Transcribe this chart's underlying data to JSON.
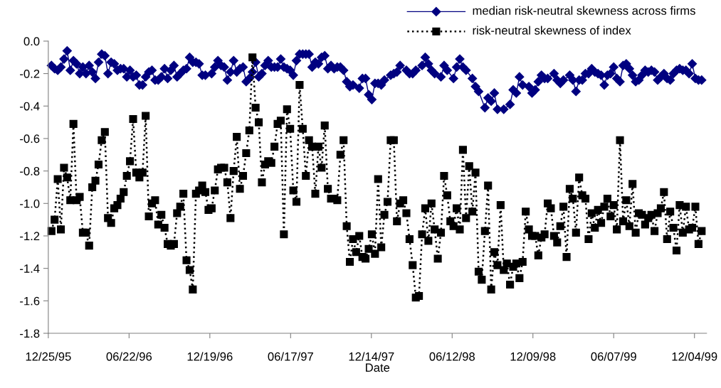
{
  "chart_data": {
    "type": "line",
    "xlabel": "Date",
    "x": [
      "1996-01-01",
      "1996-01-08",
      "1996-01-15",
      "1996-01-22",
      "1996-01-29",
      "1996-02-05",
      "1996-02-12",
      "1996-02-19",
      "1996-02-26",
      "1996-03-04",
      "1996-03-11",
      "1996-03-18",
      "1996-03-25",
      "1996-04-01",
      "1996-04-08",
      "1996-04-15",
      "1996-04-22",
      "1996-04-29",
      "1996-05-06",
      "1996-05-13",
      "1996-05-20",
      "1996-05-27",
      "1996-06-03",
      "1996-06-10",
      "1996-06-17",
      "1996-06-24",
      "1996-07-01",
      "1996-07-08",
      "1996-07-15",
      "1996-07-22",
      "1996-07-29",
      "1996-08-05",
      "1996-08-12",
      "1996-08-19",
      "1996-08-26",
      "1996-09-02",
      "1996-09-09",
      "1996-09-16",
      "1996-09-23",
      "1996-09-30",
      "1996-10-07",
      "1996-10-14",
      "1996-10-21",
      "1996-10-28",
      "1996-11-04",
      "1996-11-11",
      "1996-11-18",
      "1996-11-25",
      "1996-12-02",
      "1996-12-09",
      "1996-12-16",
      "1996-12-23",
      "1996-12-30",
      "1997-01-06",
      "1997-01-13",
      "1997-01-20",
      "1997-01-27",
      "1997-02-03",
      "1997-02-10",
      "1997-02-17",
      "1997-02-24",
      "1997-03-03",
      "1997-03-10",
      "1997-03-17",
      "1997-03-24",
      "1997-03-31",
      "1997-04-07",
      "1997-04-14",
      "1997-04-21",
      "1997-04-28",
      "1997-05-05",
      "1997-05-12",
      "1997-05-19",
      "1997-05-26",
      "1997-06-02",
      "1997-06-09",
      "1997-06-16",
      "1997-06-23",
      "1997-06-30",
      "1997-07-07",
      "1997-07-14",
      "1997-07-21",
      "1997-07-28",
      "1997-08-04",
      "1997-08-11",
      "1997-08-18",
      "1997-08-25",
      "1997-09-01",
      "1997-09-08",
      "1997-09-15",
      "1997-09-22",
      "1997-09-29",
      "1997-10-06",
      "1997-10-13",
      "1997-10-20",
      "1997-10-27",
      "1997-11-03",
      "1997-11-10",
      "1997-11-17",
      "1997-11-24",
      "1997-12-01",
      "1997-12-08",
      "1997-12-15",
      "1997-12-22",
      "1997-12-29",
      "1998-01-05",
      "1998-01-12",
      "1998-01-19",
      "1998-01-26",
      "1998-02-02",
      "1998-02-09",
      "1998-02-16",
      "1998-02-23",
      "1998-03-02",
      "1998-03-09",
      "1998-03-16",
      "1998-03-23",
      "1998-03-30",
      "1998-04-06",
      "1998-04-13",
      "1998-04-20",
      "1998-04-27",
      "1998-05-04",
      "1998-05-11",
      "1998-05-18",
      "1998-05-25",
      "1998-06-01",
      "1998-06-08",
      "1998-06-15",
      "1998-06-22",
      "1998-06-29",
      "1998-07-06",
      "1998-07-13",
      "1998-07-20",
      "1998-07-27",
      "1998-08-03",
      "1998-08-10",
      "1998-08-17",
      "1998-08-24",
      "1998-08-31",
      "1998-09-07",
      "1998-09-14",
      "1998-09-21",
      "1998-09-28",
      "1998-10-05",
      "1998-10-12",
      "1998-10-19",
      "1998-10-26",
      "1998-11-02",
      "1998-11-09",
      "1998-11-16",
      "1998-11-23",
      "1998-11-30",
      "1998-12-07",
      "1998-12-14",
      "1998-12-21",
      "1998-12-28",
      "1999-01-04",
      "1999-01-11",
      "1999-01-18",
      "1999-01-25",
      "1999-02-01",
      "1999-02-08",
      "1999-02-15",
      "1999-02-22",
      "1999-03-01",
      "1999-03-08",
      "1999-03-15",
      "1999-03-22",
      "1999-03-29",
      "1999-04-05",
      "1999-04-12",
      "1999-04-19",
      "1999-04-26",
      "1999-05-03",
      "1999-05-10",
      "1999-05-17",
      "1999-05-24",
      "1999-05-31",
      "1999-06-07",
      "1999-06-14",
      "1999-06-21",
      "1999-06-28",
      "1999-07-05",
      "1999-07-12",
      "1999-07-19",
      "1999-07-26",
      "1999-08-02",
      "1999-08-09",
      "1999-08-16",
      "1999-08-23",
      "1999-08-30",
      "1999-09-06",
      "1999-09-13",
      "1999-09-20",
      "1999-09-27",
      "1999-10-04",
      "1999-10-11",
      "1999-10-18",
      "1999-10-25",
      "1999-11-01",
      "1999-11-08",
      "1999-11-15",
      "1999-11-22",
      "1999-11-29",
      "1999-12-06",
      "1999-12-13",
      "1999-12-20"
    ],
    "series": [
      {
        "name": "median risk-neutral skewness across firms",
        "color": "#000080",
        "marker": "diamond",
        "line_style": "solid",
        "values": [
          -0.15,
          -0.17,
          -0.18,
          -0.16,
          -0.11,
          -0.06,
          -0.18,
          -0.12,
          -0.14,
          -0.2,
          -0.16,
          -0.2,
          -0.15,
          -0.19,
          -0.23,
          -0.13,
          -0.08,
          -0.09,
          -0.2,
          -0.13,
          -0.14,
          -0.18,
          -0.17,
          -0.17,
          -0.22,
          -0.18,
          -0.22,
          -0.21,
          -0.27,
          -0.27,
          -0.22,
          -0.19,
          -0.18,
          -0.24,
          -0.24,
          -0.22,
          -0.17,
          -0.23,
          -0.18,
          -0.15,
          -0.22,
          -0.2,
          -0.18,
          -0.17,
          -0.1,
          -0.13,
          -0.13,
          -0.14,
          -0.21,
          -0.21,
          null,
          -0.2,
          -0.16,
          -0.12,
          -0.15,
          -0.16,
          -0.24,
          -0.19,
          -0.12,
          -0.19,
          -0.17,
          -0.16,
          -0.25,
          -0.23,
          -0.19,
          -0.13,
          -0.22,
          -0.2,
          -0.15,
          -0.12,
          -0.16,
          -0.16,
          -0.16,
          -0.11,
          -0.16,
          -0.17,
          -0.18,
          -0.21,
          -0.12,
          -0.08,
          -0.08,
          -0.08,
          -0.08,
          -0.16,
          -0.13,
          -0.14,
          -0.1,
          -0.09,
          -0.17,
          -0.15,
          -0.17,
          -0.16,
          -0.16,
          -0.18,
          -0.25,
          -0.28,
          -0.27,
          null,
          -0.29,
          -0.23,
          -0.23,
          -0.33,
          -0.36,
          -0.26,
          -0.26,
          -0.27,
          -0.24,
          null,
          -0.21,
          -0.2,
          -0.19,
          -0.15,
          null,
          -0.18,
          -0.2,
          -0.2,
          -0.18,
          null,
          -0.15,
          -0.1,
          -0.14,
          -0.18,
          -0.2,
          null,
          -0.22,
          -0.15,
          -0.18,
          null,
          -0.23,
          -0.16,
          -0.11,
          -0.16,
          -0.18,
          null,
          -0.23,
          -0.28,
          -0.31,
          null,
          -0.41,
          -0.35,
          -0.37,
          -0.32,
          -0.42,
          null,
          -0.42,
          null,
          -0.39,
          -0.3,
          -0.32,
          -0.22,
          -0.27,
          null,
          -0.28,
          -0.32,
          -0.3,
          -0.25,
          -0.21,
          -0.23,
          -0.23,
          null,
          -0.2,
          -0.24,
          -0.26,
          -0.24,
          null,
          -0.21,
          -0.24,
          -0.31,
          -0.24,
          -0.24,
          -0.2,
          -0.2,
          -0.17,
          -0.19,
          -0.2,
          -0.21,
          -0.27,
          -0.21,
          -0.2,
          -0.16,
          -0.23,
          -0.25,
          -0.15,
          -0.14,
          -0.17,
          -0.21,
          -0.25,
          -0.24,
          -0.21,
          -0.18,
          -0.19,
          -0.18,
          -0.19,
          -0.24,
          -0.22,
          -0.2,
          -0.23,
          -0.24,
          -0.2,
          -0.18,
          -0.17,
          -0.18,
          -0.18,
          -0.2,
          -0.14,
          -0.23,
          -0.24,
          -0.24
        ]
      },
      {
        "name": "risk-neutral skewness of index",
        "color": "#000000",
        "marker": "square",
        "line_style": "dotted",
        "values": [
          -1.17,
          -1.1,
          -0.85,
          -1.16,
          -0.78,
          -0.84,
          -0.98,
          -0.51,
          -0.98,
          -0.96,
          -1.18,
          -1.18,
          -1.26,
          -0.9,
          -0.86,
          -0.76,
          -0.61,
          -0.56,
          -1.09,
          -1.12,
          -1.03,
          -1.01,
          -0.97,
          -0.93,
          -0.83,
          -0.74,
          -0.48,
          -0.81,
          -0.84,
          -0.81,
          -0.46,
          -1.08,
          -1.0,
          -0.98,
          -1.13,
          -1.07,
          -1.15,
          -1.25,
          -1.26,
          -1.25,
          -1.06,
          -1.02,
          -0.94,
          -1.35,
          -1.41,
          -1.53,
          -0.94,
          -0.92,
          -0.89,
          -0.93,
          -1.04,
          -1.03,
          -0.92,
          -0.79,
          -0.78,
          -0.78,
          -0.87,
          -1.09,
          -0.8,
          -0.59,
          -0.91,
          -0.83,
          -0.69,
          -0.55,
          -0.1,
          -0.41,
          -0.5,
          -0.87,
          -0.76,
          -0.74,
          -0.75,
          -0.65,
          -0.51,
          -0.49,
          -1.19,
          -0.42,
          -0.54,
          -0.92,
          -0.99,
          -0.27,
          -0.54,
          -0.83,
          -0.61,
          -0.65,
          -0.94,
          -0.65,
          -0.78,
          -0.52,
          -0.91,
          -0.97,
          -0.97,
          -0.98,
          -0.7,
          -0.61,
          -1.14,
          -1.36,
          -1.22,
          -1.3,
          -1.2,
          -1.33,
          -1.34,
          -1.28,
          -1.19,
          -1.31,
          -0.85,
          -1.27,
          -1.07,
          -0.99,
          -0.61,
          -0.61,
          -1.11,
          -1.0,
          -0.98,
          -1.06,
          -1.22,
          -1.38,
          -1.58,
          -1.57,
          -1.19,
          -1.03,
          -1.23,
          -1.0,
          -1.16,
          -1.34,
          -1.18,
          -0.83,
          -0.95,
          -1.11,
          -1.14,
          -1.03,
          -1.16,
          -0.67,
          -1.09,
          -0.77,
          -1.05,
          -0.81,
          -1.42,
          -1.47,
          -1.17,
          -0.89,
          -1.53,
          -1.3,
          -1.38,
          -1.01,
          -1.41,
          -1.37,
          -1.5,
          -1.39,
          -1.37,
          -1.46,
          -1.36,
          -1.05,
          -1.16,
          -1.2,
          -1.2,
          -1.32,
          -1.21,
          -1.19,
          -1.0,
          -1.03,
          -1.2,
          -1.24,
          -1.14,
          -1.02,
          -1.33,
          -0.91,
          -0.97,
          -1.18,
          -0.84,
          -0.95,
          -0.97,
          -1.22,
          -1.06,
          -1.15,
          -1.04,
          -1.12,
          -1.02,
          -0.97,
          -1.08,
          -1.01,
          -1.16,
          -0.61,
          -1.11,
          -0.98,
          -1.14,
          -0.88,
          -1.18,
          -1.06,
          -1.07,
          -1.13,
          -1.09,
          -1.07,
          -1.17,
          -1.06,
          -1.03,
          -0.93,
          -1.22,
          -1.05,
          -1.15,
          -1.29,
          -1.01,
          -1.18,
          -1.02,
          -1.16,
          -1.15,
          -1.02,
          -1.25,
          -1.17
        ]
      }
    ],
    "xlim": [
      "1995-12-25",
      "1999-12-31"
    ],
    "xticks": [
      {
        "value": "1995-12-25",
        "label": "12/25/95"
      },
      {
        "value": "1996-06-22",
        "label": "06/22/96"
      },
      {
        "value": "1996-12-19",
        "label": "12/19/96"
      },
      {
        "value": "1997-06-17",
        "label": "06/17/97"
      },
      {
        "value": "1997-12-14",
        "label": "12/14/97"
      },
      {
        "value": "1998-06-12",
        "label": "06/12/98"
      },
      {
        "value": "1998-12-09",
        "label": "12/09/98"
      },
      {
        "value": "1999-06-07",
        "label": "06/07/99"
      },
      {
        "value": "1999-12-04",
        "label": "12/04/99"
      }
    ],
    "ylim": [
      -1.8,
      0
    ],
    "yticks": [
      {
        "value": 0,
        "label": "0.0"
      },
      {
        "value": -0.2,
        "label": "-0.2"
      },
      {
        "value": -0.4,
        "label": "-0.4"
      },
      {
        "value": -0.6,
        "label": "-0.6"
      },
      {
        "value": -0.8,
        "label": "-0.8"
      },
      {
        "value": -1.0,
        "label": "-1.0"
      },
      {
        "value": -1.2,
        "label": "-1.2"
      },
      {
        "value": -1.4,
        "label": "-1.4"
      },
      {
        "value": -1.6,
        "label": "-1.6"
      },
      {
        "value": -1.8,
        "label": "-1.8"
      }
    ],
    "grid": false,
    "legend": "top right"
  }
}
